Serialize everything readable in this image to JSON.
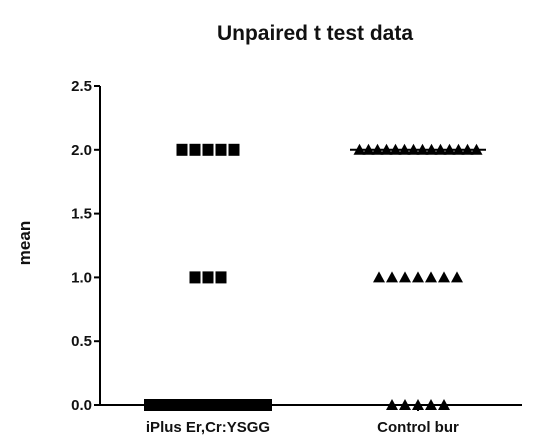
{
  "chart_data": {
    "type": "scatter",
    "title": "Unpaired t test data",
    "ylabel": "mean",
    "xlabel": "",
    "categories": [
      "iPlus Er,Cr:YSGG",
      "Control bur"
    ],
    "ylim": [
      0,
      2.5
    ],
    "yticks": [
      "0.0",
      "0.5",
      "1.0",
      "1.5",
      "2.0",
      "2.5"
    ],
    "ytick_values": [
      0,
      0.5,
      1.0,
      1.5,
      2.0,
      2.5
    ],
    "grid": false,
    "legend": "none",
    "series": [
      {
        "category": "iPlus Er,Cr:YSGG",
        "marker": "square",
        "color": "#000000",
        "groups": [
          {
            "y": 2.0,
            "count": 5
          },
          {
            "y": 1.0,
            "count": 3
          },
          {
            "y": 0.0,
            "count": 14
          }
        ]
      },
      {
        "category": "Control bur",
        "marker": "triangle",
        "color": "#000000",
        "groups": [
          {
            "y": 2.0,
            "count": 14
          },
          {
            "y": 1.0,
            "count": 7
          },
          {
            "y": 0.0,
            "count": 5
          }
        ]
      }
    ],
    "mean_lines": [
      {
        "category": "Control bur",
        "y": 2.0
      }
    ]
  }
}
